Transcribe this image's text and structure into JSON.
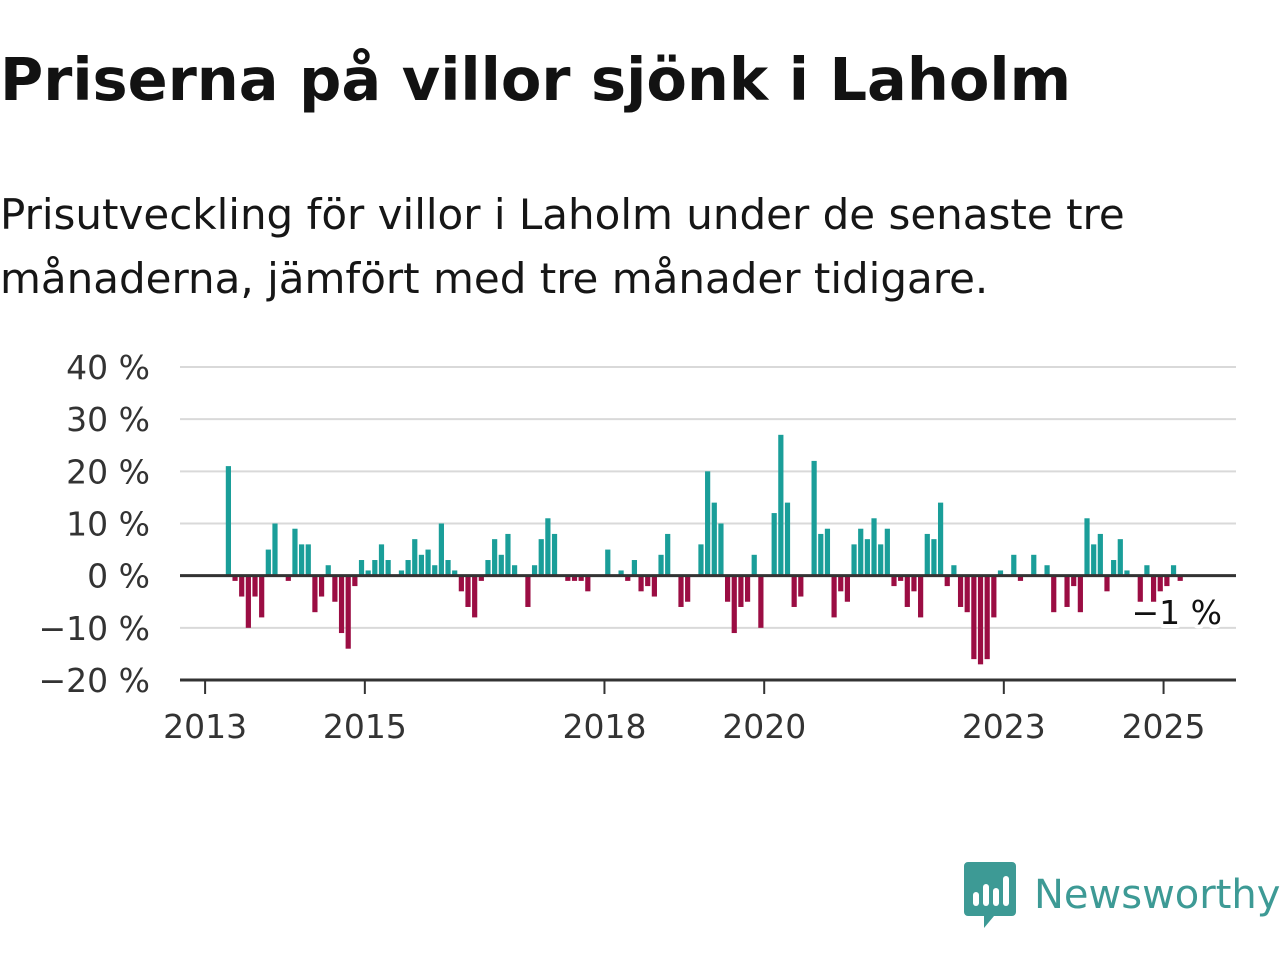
{
  "title": "Priserna på villor sjönk i Laholm",
  "subtitle": "Prisutveckling för villor i Laholm under de senaste tre månaderna, jämfört med tre månader tidigare.",
  "brand": {
    "name": "Newsworthy",
    "color": "#3d9a95",
    "icon": "newsworthy-logo-icon"
  },
  "colors": {
    "positive": "#1a9e99",
    "negative": "#9b0d43",
    "grid": "#d9d9d9",
    "axis": "#333333"
  },
  "chart_data": {
    "type": "bar",
    "title": "Priserna på villor sjönk i Laholm",
    "subtitle": "Prisutveckling för villor i Laholm under de senaste tre månaderna, jämfört med tre månader tidigare.",
    "xlabel": "",
    "ylabel": "",
    "ylim": [
      -20,
      40
    ],
    "y_ticks": [
      40,
      30,
      20,
      10,
      0,
      -10,
      -20
    ],
    "y_tick_labels": [
      "40 %",
      "30 %",
      "20 %",
      "10 %",
      "0 %",
      "−10 %",
      "−20 %"
    ],
    "x_ticks": [
      "2013",
      "2015",
      "2018",
      "2020",
      "2023",
      "2025"
    ],
    "grid": true,
    "legend": "none",
    "x_start": "2013-04",
    "frequency": "monthly",
    "end_annotation": "−1 %",
    "values": [
      21,
      -1,
      -4,
      -10,
      -4,
      -8,
      5,
      10,
      0,
      -1,
      9,
      6,
      6,
      -7,
      -4,
      2,
      -5,
      -11,
      -14,
      -2,
      3,
      1,
      3,
      6,
      3,
      0,
      1,
      3,
      7,
      4,
      5,
      2,
      10,
      3,
      1,
      -3,
      -6,
      -8,
      -1,
      3,
      7,
      4,
      8,
      2,
      0,
      -6,
      2,
      7,
      11,
      8,
      0,
      -1,
      -1,
      -1,
      -3,
      0,
      0,
      5,
      0,
      1,
      -1,
      3,
      -3,
      -2,
      -4,
      4,
      8,
      0,
      -6,
      -5,
      0,
      6,
      20,
      14,
      10,
      -5,
      -11,
      -6,
      -5,
      4,
      -10,
      0,
      12,
      27,
      14,
      -6,
      -4,
      0,
      22,
      8,
      9,
      -8,
      -3,
      -5,
      6,
      9,
      7,
      11,
      6,
      9,
      -2,
      -1,
      -6,
      -3,
      -8,
      8,
      7,
      14,
      -2,
      2,
      -6,
      -7,
      -16,
      -17,
      -16,
      -8,
      1,
      0,
      4,
      -1,
      0,
      4,
      0,
      2,
      -7,
      0,
      -6,
      -2,
      -7,
      11,
      6,
      8,
      -3,
      3,
      7,
      1,
      0,
      -5,
      2,
      -5,
      -3,
      -2,
      2,
      -1
    ]
  }
}
